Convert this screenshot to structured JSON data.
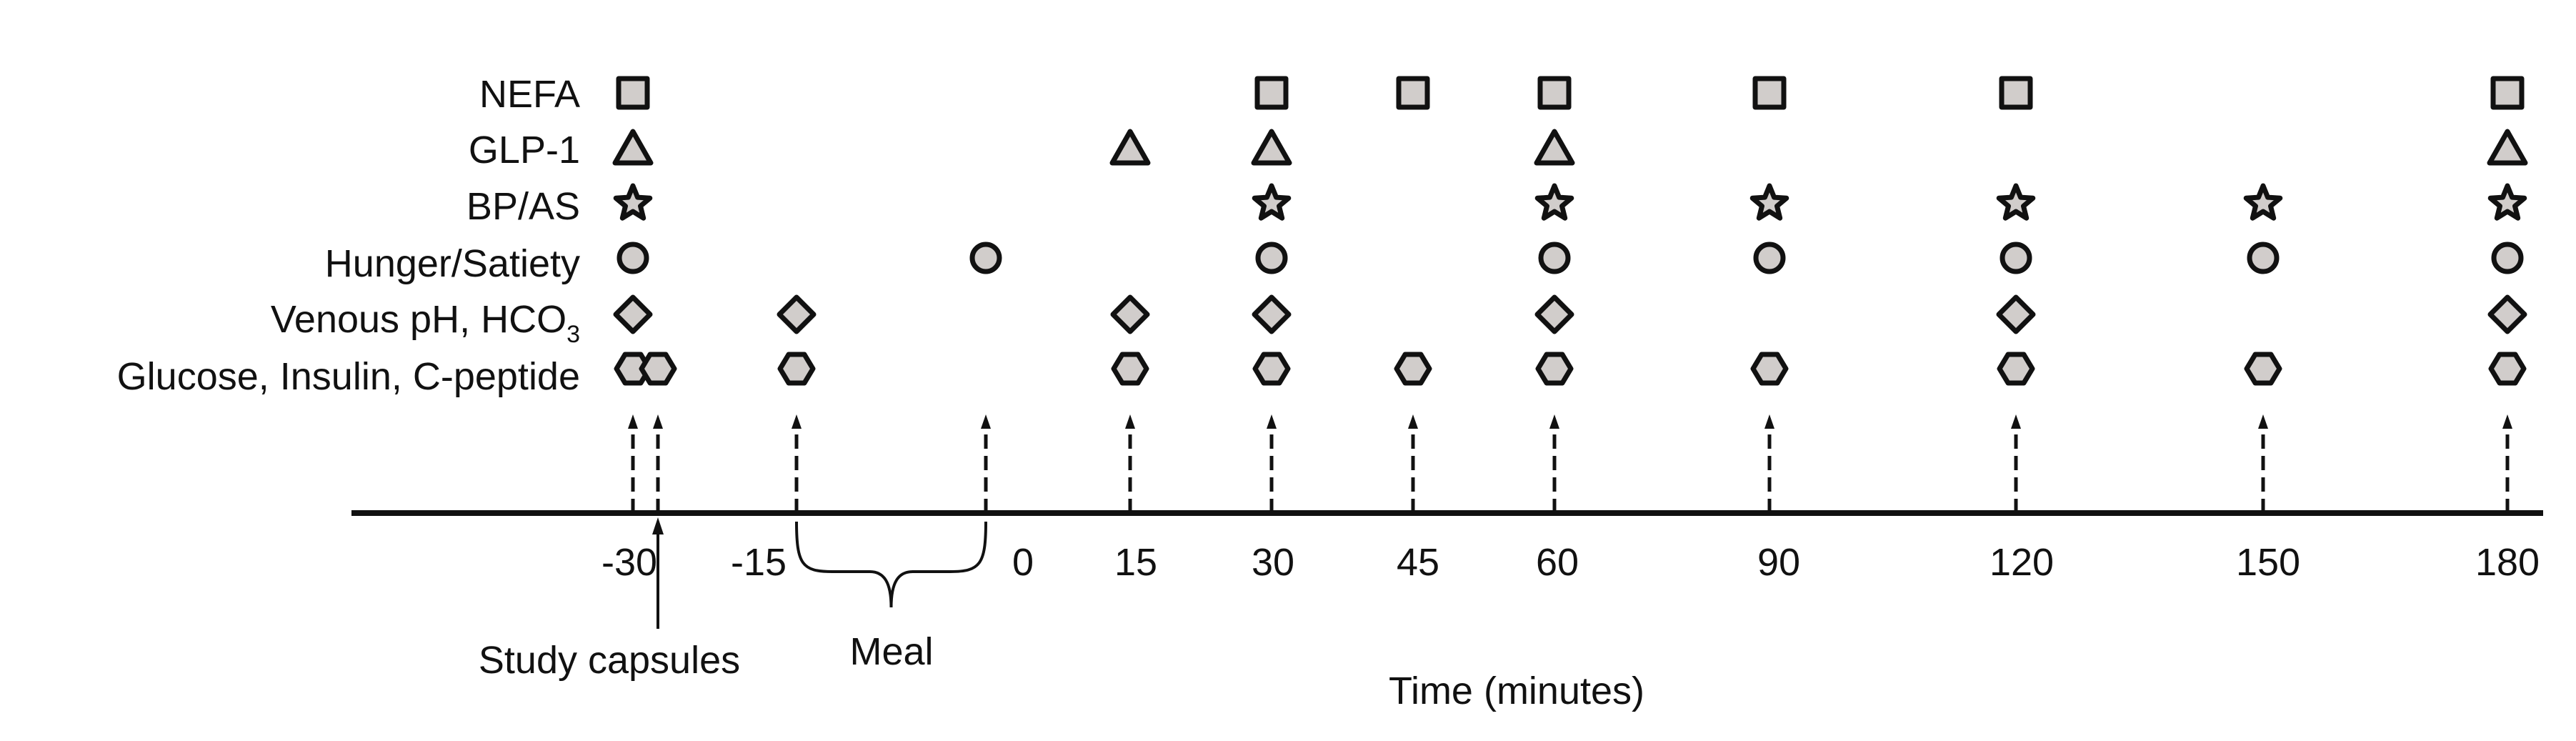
{
  "colors": {
    "marker_fill": "#d1cdcb",
    "stroke": "#111111",
    "background": "#ffffff"
  },
  "rows": [
    {
      "label": "NEFA",
      "marker": "square",
      "times": [
        -30,
        30,
        45,
        60,
        90,
        120,
        180
      ]
    },
    {
      "label": "GLP-1",
      "marker": "triangle",
      "times": [
        -30,
        15,
        30,
        60,
        180
      ]
    },
    {
      "label": "BP/AS",
      "marker": "star",
      "times": [
        -30,
        30,
        60,
        90,
        120,
        150,
        180
      ]
    },
    {
      "label": "Hunger/Satiety",
      "marker": "circle",
      "times": [
        -30,
        0,
        30,
        60,
        90,
        120,
        150,
        180
      ]
    },
    {
      "label": "Venous pH, HCO",
      "label_sub": "3",
      "marker": "diamond",
      "times": [
        -30,
        -15,
        15,
        30,
        60,
        120,
        180
      ]
    },
    {
      "label": "Glucose, Insulin, C-peptide",
      "marker": "hexagon",
      "times": [
        -30,
        -26,
        -15,
        15,
        30,
        45,
        60,
        90,
        120,
        150,
        180
      ]
    }
  ],
  "axis": {
    "ticks": [
      "-30",
      "-15",
      "0",
      "15",
      "30",
      "45",
      "60",
      "90",
      "120",
      "150",
      "180"
    ],
    "title": "Time (minutes)"
  },
  "arrows_at": [
    -30,
    -26,
    -15,
    0,
    15,
    30,
    45,
    60,
    90,
    120,
    150,
    180
  ],
  "annotations": {
    "capsules": {
      "label": "Study capsules",
      "time": -26
    },
    "meal": {
      "label": "Meal",
      "start": -15,
      "end": 0
    }
  }
}
